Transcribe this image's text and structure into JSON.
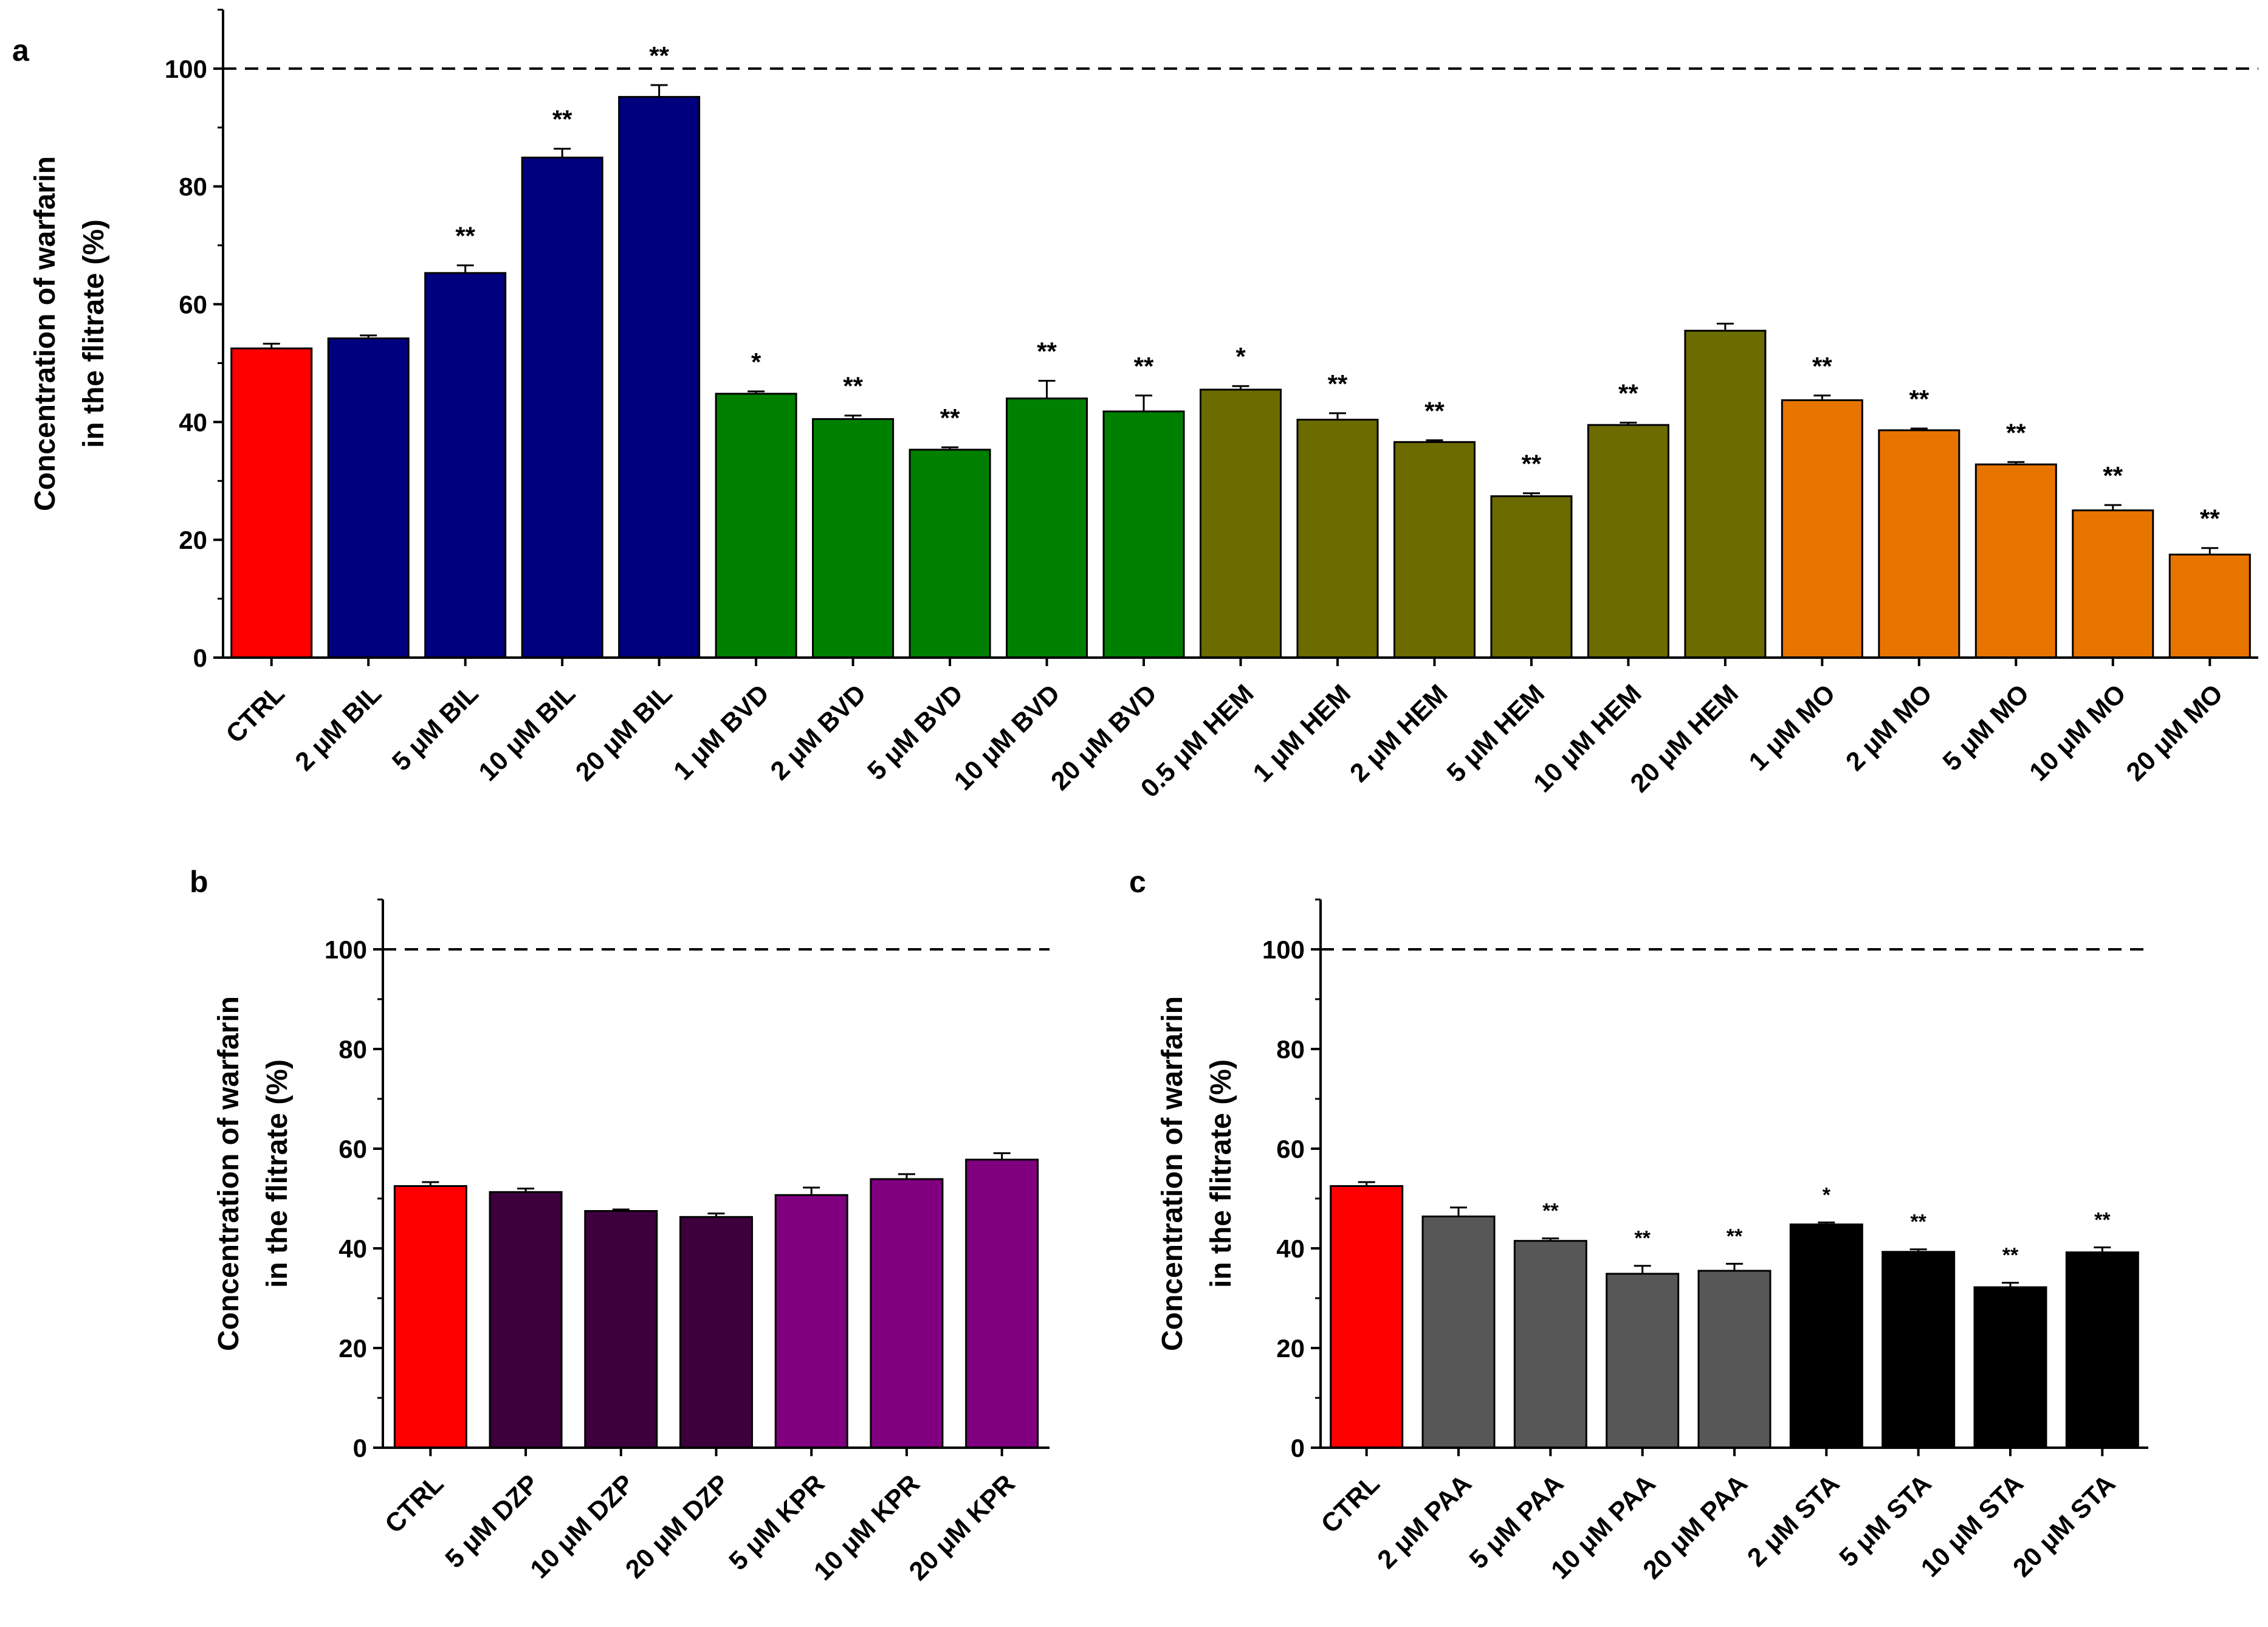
{
  "colors": {
    "CTRL": "#ff0000",
    "BIL": "#00007f",
    "BVD": "#008000",
    "HEM": "#6b6b00",
    "MO": "#e87400",
    "DZP": "#3d003d",
    "KPR": "#800080",
    "PAA": "#575757",
    "STA": "#000000"
  },
  "chart_data": [
    {
      "panel": "a",
      "type": "bar",
      "ylabel_lines": [
        "Concentration of warfarin",
        "in the flitrate (%)"
      ],
      "ylim": [
        0,
        110
      ],
      "yticks": [
        0,
        20,
        40,
        60,
        80,
        100
      ],
      "reference_line": 100,
      "categories": [
        "CTRL",
        "2 μM BIL",
        "5 μM BIL",
        "10 μM BIL",
        "20 μM BIL",
        "1 μM BVD",
        "2 μM BVD",
        "5 μM BVD",
        "10 μM BVD",
        "20 μM BVD",
        "0.5 μM HEM",
        "1 μM HEM",
        "2 μM HEM",
        "5 μM HEM",
        "10 μM HEM",
        "20 μM HEM",
        "1 μM MO",
        "2 μM MO",
        "5 μM MO",
        "10 μM MO",
        "20 μM MO"
      ],
      "values": [
        52.5,
        54.2,
        65.3,
        84.9,
        95.2,
        44.8,
        40.5,
        35.3,
        44.0,
        41.8,
        45.5,
        40.4,
        36.6,
        27.4,
        39.5,
        55.5,
        43.7,
        38.6,
        32.8,
        25.0,
        17.5
      ],
      "errors": [
        0.8,
        0.5,
        1.3,
        1.5,
        2.0,
        0.4,
        0.6,
        0.4,
        3.0,
        2.7,
        0.6,
        1.1,
        0.3,
        0.5,
        0.4,
        1.2,
        0.8,
        0.3,
        0.4,
        0.9,
        1.1
      ],
      "groups": [
        "CTRL",
        "BIL",
        "BIL",
        "BIL",
        "BIL",
        "BVD",
        "BVD",
        "BVD",
        "BVD",
        "BVD",
        "HEM",
        "HEM",
        "HEM",
        "HEM",
        "HEM",
        "HEM",
        "MO",
        "MO",
        "MO",
        "MO",
        "MO"
      ],
      "significance": [
        "",
        "",
        "**",
        "**",
        "**",
        "*",
        "**",
        "**",
        "**",
        "**",
        "*",
        "**",
        "**",
        "**",
        "**",
        "",
        "**",
        "**",
        "**",
        "**",
        "**"
      ]
    },
    {
      "panel": "b",
      "type": "bar",
      "ylabel_lines": [
        "Concentration of warfarin",
        "in the flitrate (%)"
      ],
      "ylim": [
        0,
        110
      ],
      "yticks": [
        0,
        20,
        40,
        60,
        80,
        100
      ],
      "reference_line": 100,
      "categories": [
        "CTRL",
        "5 μM DZP",
        "10 μM DZP",
        "20 μM DZP",
        "5 μM KPR",
        "10 μM KPR",
        "20 μM KPR"
      ],
      "values": [
        52.5,
        51.3,
        47.5,
        46.3,
        50.7,
        53.9,
        57.8
      ],
      "errors": [
        0.8,
        0.7,
        0.3,
        0.7,
        1.5,
        1.0,
        1.3
      ],
      "groups": [
        "CTRL",
        "DZP",
        "DZP",
        "DZP",
        "KPR",
        "KPR",
        "KPR"
      ],
      "significance": [
        "",
        "",
        "",
        "",
        "",
        "",
        ""
      ]
    },
    {
      "panel": "c",
      "type": "bar",
      "ylabel_lines": [
        "Concentration of warfarin",
        "in the flitrate (%)"
      ],
      "ylim": [
        0,
        110
      ],
      "yticks": [
        0,
        20,
        40,
        60,
        80,
        100
      ],
      "reference_line": 100,
      "categories": [
        "CTRL",
        "2 μM PAA",
        "5 μM PAA",
        "10 μM PAA",
        "20 μM PAA",
        "2 μM STA",
        "5 μM STA",
        "10 μM STA",
        "20 μM STA"
      ],
      "values": [
        52.5,
        46.4,
        41.5,
        34.9,
        35.5,
        44.8,
        39.3,
        32.2,
        39.2
      ],
      "errors": [
        0.8,
        1.8,
        0.5,
        1.6,
        1.4,
        0.4,
        0.5,
        0.9,
        1.0
      ],
      "groups": [
        "CTRL",
        "PAA",
        "PAA",
        "PAA",
        "PAA",
        "STA",
        "STA",
        "STA",
        "STA"
      ],
      "significance": [
        "",
        "",
        "**",
        "**",
        "**",
        "*",
        "**",
        "**",
        "**"
      ]
    }
  ]
}
